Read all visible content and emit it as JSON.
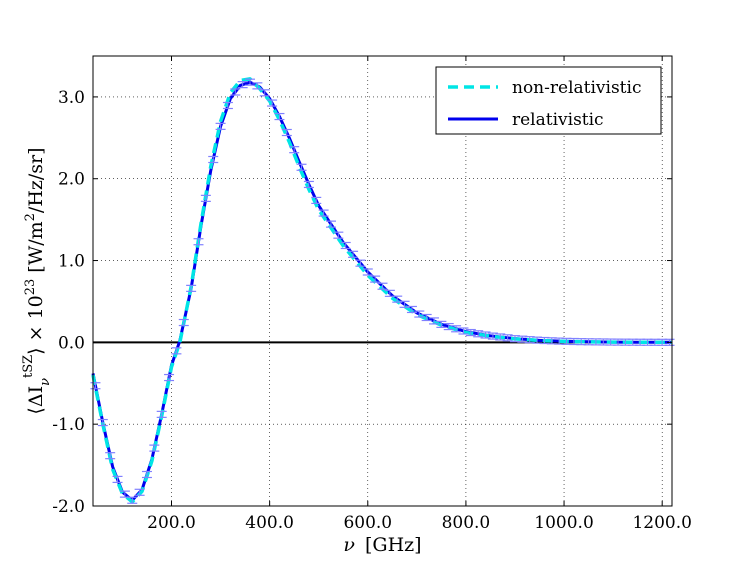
{
  "chart_data": {
    "type": "line",
    "xlabel_symbol": "ν",
    "xlabel_unit": "[GHz]",
    "ylabel_prefix": "⟨ΔI",
    "ylabel_sub": "ν",
    "ylabel_sup": "tSZ",
    "ylabel_mid": "⟩ × 10",
    "ylabel_exp": "23",
    "ylabel_units": "[W/m",
    "ylabel_units_exp": "2",
    "ylabel_units_end": "/Hz/sr]",
    "xlim": [
      40,
      1220
    ],
    "ylim": [
      -2.0,
      3.5
    ],
    "xticks": [
      200,
      400,
      600,
      800,
      1000,
      1200
    ],
    "xtick_labels": [
      "200.0",
      "400.0",
      "600.0",
      "800.0",
      "1000.0",
      "1200.0"
    ],
    "yticks": [
      -2.0,
      -1.0,
      0.0,
      1.0,
      2.0,
      3.0
    ],
    "ytick_labels": [
      "-2.0",
      "-1.0",
      "0.0",
      "1.0",
      "2.0",
      "3.0"
    ],
    "grid": true,
    "legend_position": "top-right",
    "series": [
      {
        "name": "non-relativistic",
        "color": "#00e5e5",
        "style": "dashed",
        "x": [
          40,
          60,
          80,
          100,
          120,
          140,
          160,
          180,
          200,
          217,
          240,
          260,
          280,
          300,
          320,
          340,
          360,
          380,
          400,
          420,
          440,
          460,
          480,
          500,
          550,
          600,
          650,
          700,
          750,
          800,
          850,
          900,
          950,
          1000,
          1050,
          1100,
          1150,
          1200,
          1220
        ],
        "y": [
          -0.4,
          -1.0,
          -1.55,
          -1.85,
          -1.95,
          -1.82,
          -1.45,
          -0.9,
          -0.3,
          0.0,
          0.68,
          1.45,
          2.15,
          2.7,
          3.05,
          3.2,
          3.22,
          3.1,
          2.95,
          2.72,
          2.45,
          2.15,
          1.87,
          1.62,
          1.18,
          0.82,
          0.54,
          0.34,
          0.21,
          0.12,
          0.075,
          0.042,
          0.023,
          0.012,
          0.006,
          0.003,
          0.0015,
          0.0008,
          0.0005
        ]
      },
      {
        "name": "relativistic",
        "color": "#0000ee",
        "style": "solid",
        "x": [
          40,
          60,
          80,
          100,
          120,
          140,
          160,
          180,
          200,
          217,
          240,
          260,
          280,
          300,
          320,
          340,
          360,
          380,
          400,
          420,
          440,
          460,
          480,
          500,
          550,
          600,
          650,
          700,
          750,
          800,
          850,
          900,
          950,
          1000,
          1050,
          1100,
          1150,
          1200,
          1220
        ],
        "y": [
          -0.38,
          -0.98,
          -1.52,
          -1.83,
          -1.93,
          -1.8,
          -1.43,
          -0.88,
          -0.28,
          0.02,
          0.66,
          1.42,
          2.1,
          2.64,
          2.98,
          3.14,
          3.18,
          3.12,
          2.98,
          2.76,
          2.5,
          2.21,
          1.93,
          1.67,
          1.22,
          0.86,
          0.57,
          0.36,
          0.22,
          0.13,
          0.08,
          0.045,
          0.025,
          0.013,
          0.007,
          0.0035,
          0.0017,
          0.0009,
          0.0006
        ]
      }
    ],
    "errorbar_points": {
      "color": "#8080ff",
      "x": [
        45,
        60,
        75,
        90,
        105,
        120,
        135,
        150,
        165,
        180,
        195,
        210,
        225,
        240,
        255,
        270,
        285,
        300,
        315,
        330,
        345,
        360,
        375,
        390,
        405,
        420,
        435,
        450,
        465,
        480,
        495,
        510,
        525,
        540,
        555,
        570,
        585,
        600,
        615,
        630,
        645,
        660,
        675,
        690,
        705,
        720,
        735,
        750,
        765,
        780,
        795,
        810,
        825,
        840,
        855,
        870,
        885,
        900,
        915,
        930,
        945,
        960,
        975,
        990,
        1005,
        1020,
        1035,
        1050,
        1065,
        1080,
        1095,
        1110,
        1125,
        1140,
        1155,
        1170,
        1185,
        1200,
        1215
      ]
    }
  }
}
